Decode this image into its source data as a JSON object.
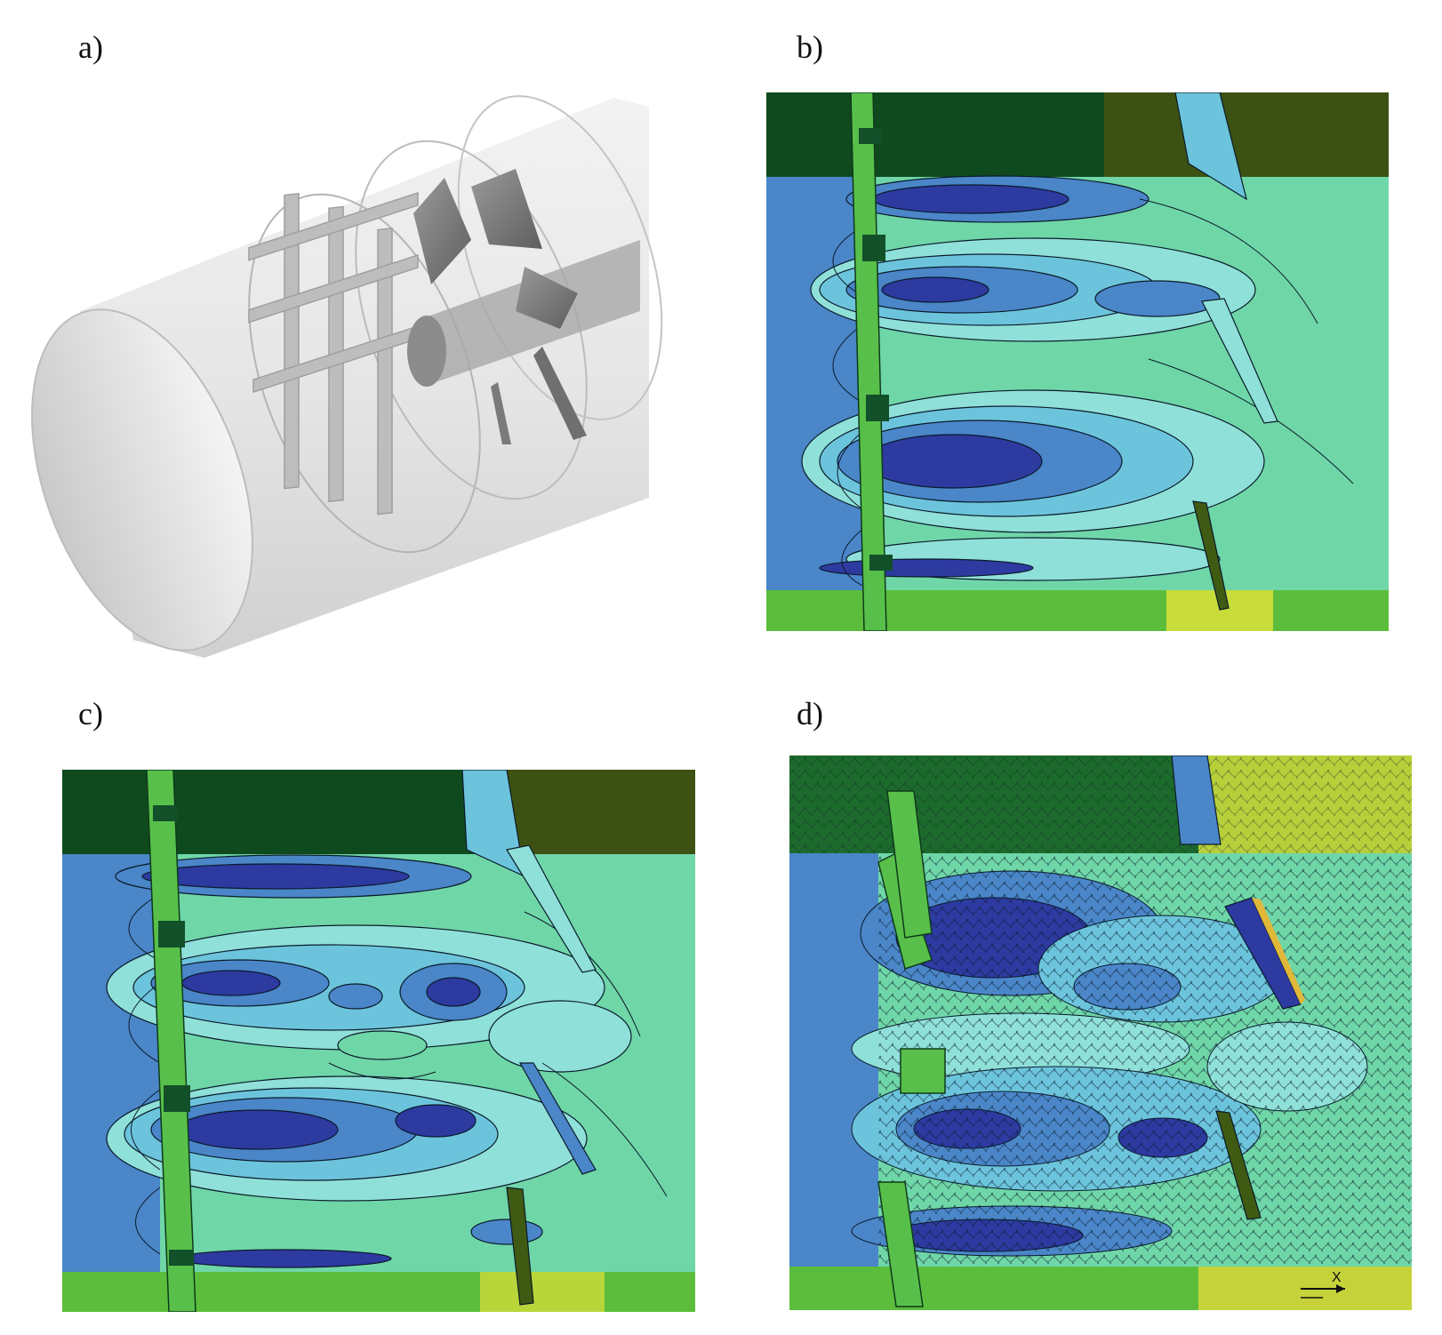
{
  "figure": {
    "panels": [
      {
        "id": "a",
        "label": "a)"
      },
      {
        "id": "b",
        "label": "b)"
      },
      {
        "id": "c",
        "label": "c)"
      },
      {
        "id": "d",
        "label": "d)"
      }
    ],
    "axis_indicator_label": "X",
    "colors": {
      "dark_blue": "#2d3aa0",
      "mid_blue": "#4a86c8",
      "light_blue": "#6cc4dc",
      "cyan": "#8fe0d8",
      "mint": "#6fd6a8",
      "green": "#58c04a",
      "dark_green": "#12502a",
      "olive": "#3f5a12",
      "yellow_green": "#b8d63a",
      "grey_pipe": "#d6d6d6"
    }
  }
}
